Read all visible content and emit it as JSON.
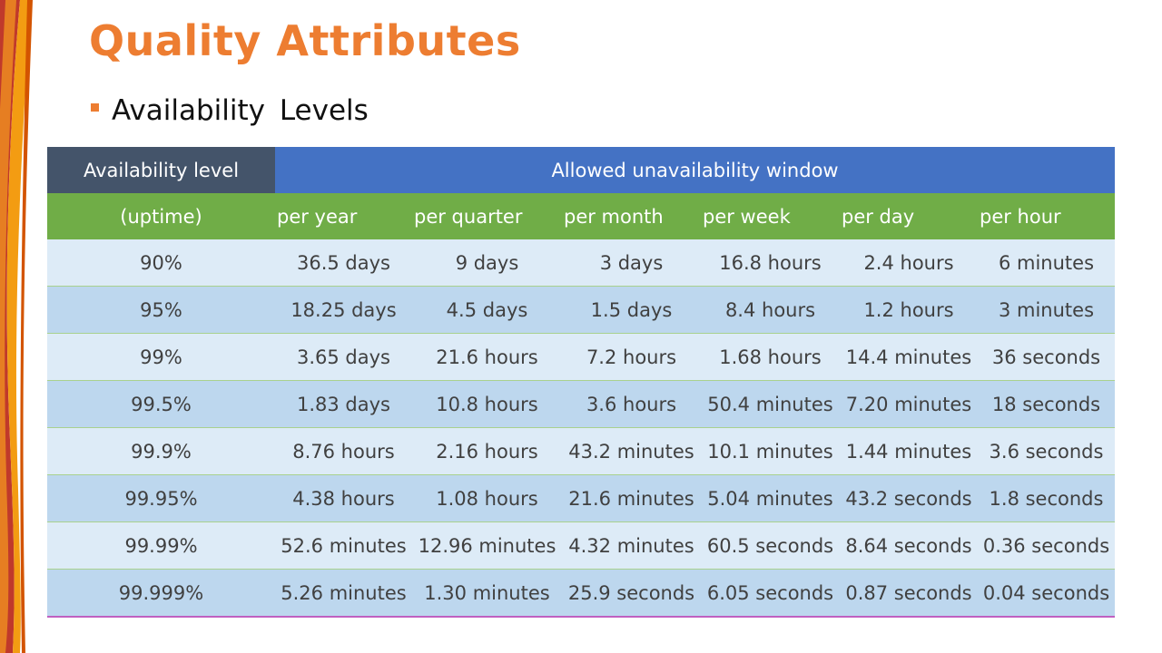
{
  "slide": {
    "title": "Quality Attributes",
    "bullet": "Availability  Levels"
  },
  "table": {
    "header_level": "Availability level",
    "header_window": "Allowed unavailability window",
    "subheaders": [
      "(uptime)",
      "per year",
      "per quarter",
      "per month",
      "per week",
      "per day",
      "per hour"
    ],
    "rows": [
      [
        "90%",
        "36.5 days",
        "9 days",
        "3 days",
        "16.8 hours",
        "2.4 hours",
        "6 minutes"
      ],
      [
        "95%",
        "18.25 days",
        "4.5 days",
        "1.5 days",
        "8.4 hours",
        "1.2 hours",
        "3 minutes"
      ],
      [
        "99%",
        "3.65 days",
        "21.6 hours",
        "7.2 hours",
        "1.68 hours",
        "14.4 minutes",
        "36 seconds"
      ],
      [
        "99.5%",
        "1.83 days",
        "10.8 hours",
        "3.6 hours",
        "50.4 minutes",
        "7.20 minutes",
        "18 seconds"
      ],
      [
        "99.9%",
        "8.76 hours",
        "2.16 hours",
        "43.2 minutes",
        "10.1 minutes",
        "1.44 minutes",
        "3.6 seconds"
      ],
      [
        "99.95%",
        "4.38 hours",
        "1.08 hours",
        "21.6 minutes",
        "5.04 minutes",
        "43.2 seconds",
        "1.8 seconds"
      ],
      [
        "99.99%",
        "52.6 minutes",
        "12.96 minutes",
        "4.32 minutes",
        "60.5 seconds",
        "8.64 seconds",
        "0.36 seconds"
      ],
      [
        "99.999%",
        "5.26 minutes",
        "1.30 minutes",
        "25.9 seconds",
        "6.05 seconds",
        "0.87 seconds",
        "0.04 seconds"
      ]
    ]
  },
  "colors": {
    "accent": "#ed7d31",
    "header_level_bg": "#44546a",
    "header_window_bg": "#4472c4",
    "subheader_bg": "#70ad47",
    "row_light": "#ddebf7",
    "row_dark": "#bdd7ee"
  }
}
